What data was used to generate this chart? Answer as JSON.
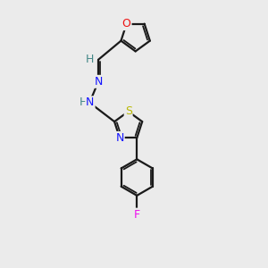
{
  "bg_color": "#ebebeb",
  "bond_color": "#1a1a1a",
  "N_color": "#1414ff",
  "O_color": "#ee1111",
  "S_color": "#b8b800",
  "F_color": "#ee11ee",
  "H_color": "#448888",
  "figsize": [
    3.0,
    3.0
  ],
  "dpi": 100,
  "xlim": [
    -1.8,
    1.8
  ],
  "ylim": [
    -4.5,
    4.5
  ]
}
